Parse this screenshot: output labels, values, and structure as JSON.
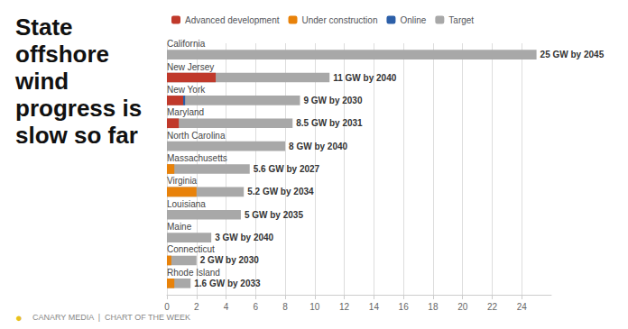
{
  "chart_data": {
    "type": "bar",
    "title": "State\noffshore\nwind\nprogress is\nslow so far",
    "orientation": "horizontal",
    "stacked": true,
    "grid": true,
    "categories": [
      "California",
      "New Jersey",
      "New York",
      "Maryland",
      "North Carolina",
      "Massachusetts",
      "Virginia",
      "Louisiana",
      "Maine",
      "Connecticut",
      "Rhode Island"
    ],
    "series": [
      {
        "name": "Advanced development",
        "color": "#c0392b",
        "values": [
          0.0,
          3.3,
          1.1,
          0.8,
          0.0,
          0.0,
          0.0,
          0.0,
          0.0,
          0.0,
          0.0
        ]
      },
      {
        "name": "Under construction",
        "color": "#e8820a",
        "values": [
          0.0,
          0.0,
          0.0,
          0.0,
          0.0,
          0.5,
          2.0,
          0.0,
          0.0,
          0.3,
          0.5
        ]
      },
      {
        "name": "Online",
        "color": "#2c5fa8",
        "values": [
          0.0,
          0.0,
          0.13,
          0.0,
          0.0,
          0.0,
          0.0,
          0.0,
          0.0,
          0.0,
          0.0
        ]
      },
      {
        "name": "Target",
        "color": "#a8a8a8",
        "values": [
          25.0,
          11.0,
          9.0,
          8.5,
          8.0,
          5.6,
          5.2,
          5.0,
          3.0,
          2.0,
          1.6
        ],
        "value_labels": [
          "25 GW by 2045",
          "11 GW by 2040",
          "9 GW by 2030",
          "8.5 GW by 2031",
          "8 GW by 2040",
          "5.6 GW by 2027",
          "5.2 GW by 2034",
          "5 GW by 2035",
          "3 GW by 2040",
          "2 GW by 2030",
          "1.6 GW by 2033"
        ]
      }
    ],
    "xlim": [
      0,
      26
    ],
    "xticks": [
      0,
      2,
      4,
      6,
      8,
      10,
      12,
      14,
      16,
      18,
      20,
      22,
      24
    ],
    "annotations": [
      {
        "text": "●",
        "color": "#e8c020"
      },
      {
        "text": "CANARY MEDIA  |  CHART OF THE WEEK"
      }
    ]
  }
}
